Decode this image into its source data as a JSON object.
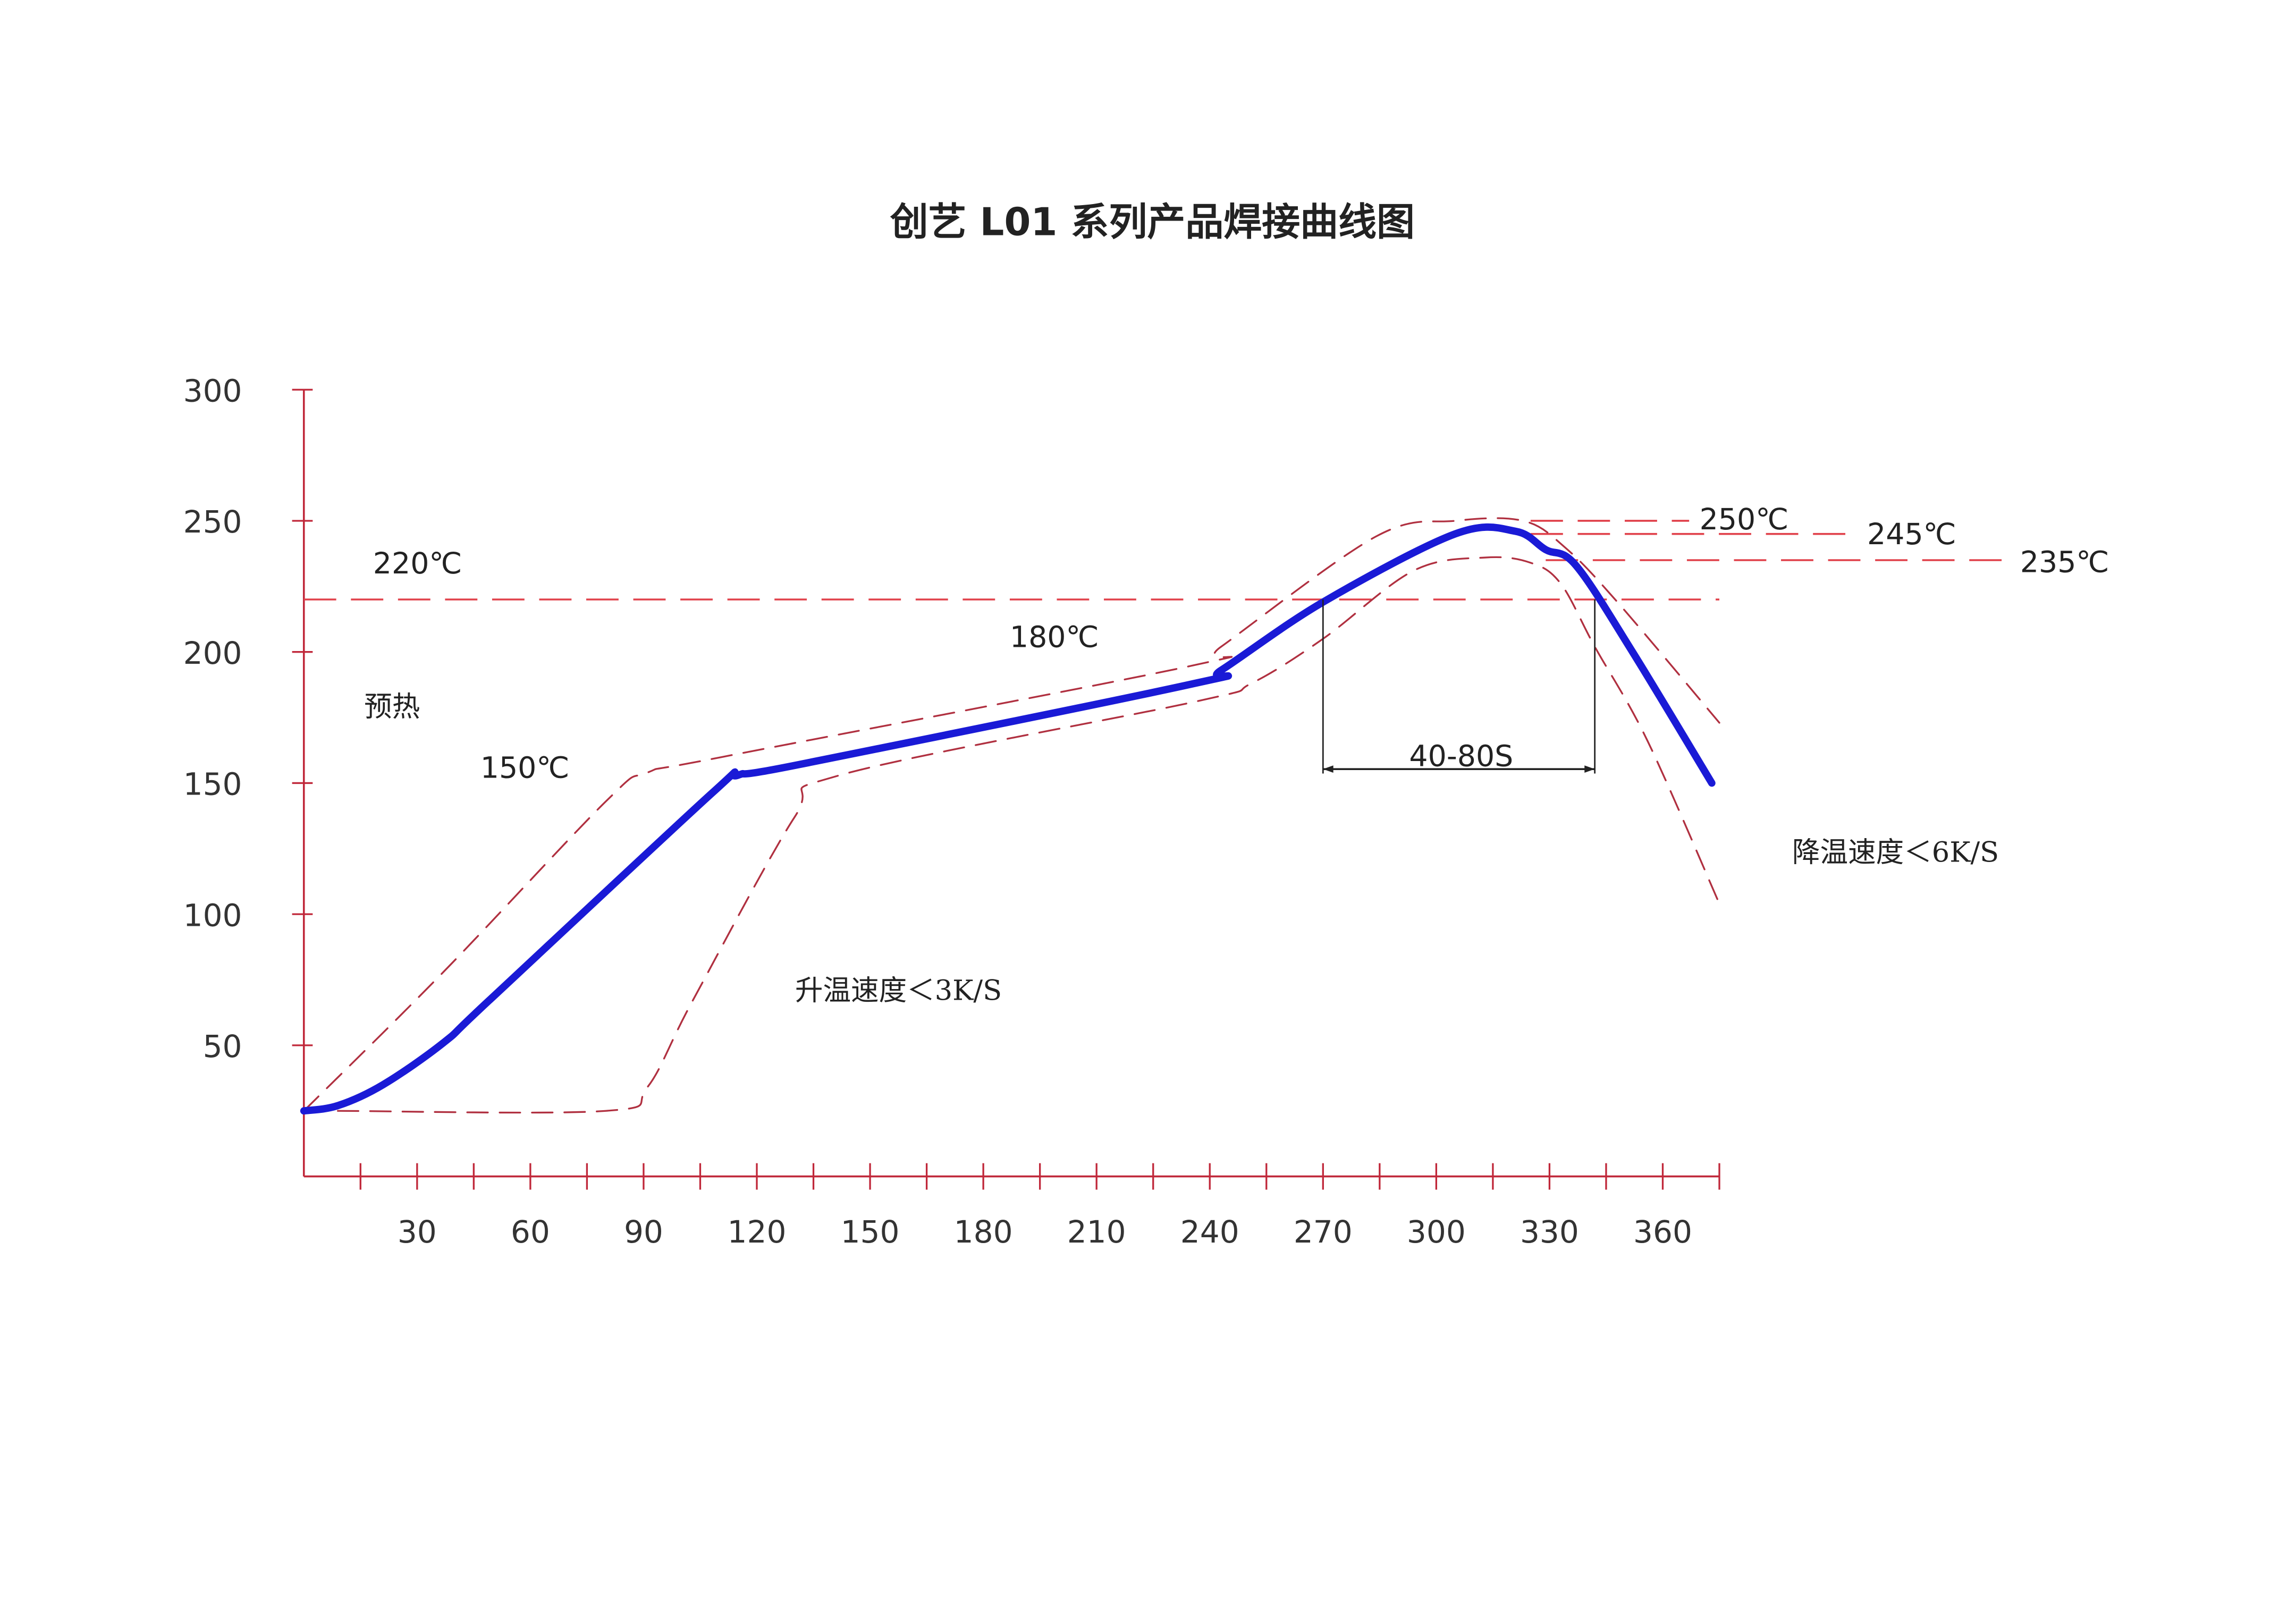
{
  "chart_data": {
    "type": "line",
    "title": "创艺 L01 系列产品焊接曲线图",
    "xlabel": "",
    "ylabel": "",
    "xlim": [
      0,
      375
    ],
    "ylim": [
      0,
      300
    ],
    "x_ticks": [
      30,
      60,
      90,
      120,
      150,
      180,
      210,
      240,
      270,
      300,
      330,
      360
    ],
    "x_minor_tick_step": 15,
    "y_ticks": [
      50,
      100,
      150,
      200,
      250,
      300
    ],
    "grid": false,
    "series": [
      {
        "role": "profile",
        "color": "#1a1ad6",
        "style": "solid",
        "points": [
          [
            0,
            25
          ],
          [
            9,
            27
          ],
          [
            21,
            35
          ],
          [
            37,
            51
          ],
          [
            49,
            67
          ],
          [
            108,
            146
          ],
          [
            115,
            153
          ],
          [
            131,
            157
          ],
          [
            236,
            188
          ],
          [
            243,
            193
          ],
          [
            270,
            219
          ],
          [
            305,
            245
          ],
          [
            321,
            246
          ],
          [
            329,
            239
          ],
          [
            337,
            233
          ],
          [
            352,
            200
          ],
          [
            373,
            150
          ]
        ]
      },
      {
        "role": "upper-limit",
        "color": "#b03040",
        "style": "dashed",
        "points": [
          [
            0,
            25
          ],
          [
            37,
            78
          ],
          [
            80,
            143
          ],
          [
            91,
            154
          ],
          [
            111,
            160
          ],
          [
            236,
            195
          ],
          [
            243,
            202
          ],
          [
            284,
            244
          ],
          [
            305,
            250
          ],
          [
            323,
            250
          ],
          [
            334,
            240
          ],
          [
            348,
            219
          ],
          [
            375,
            173
          ]
        ]
      },
      {
        "role": "lower-limit",
        "color": "#b03040",
        "style": "dashed",
        "points": [
          [
            9,
            25
          ],
          [
            80,
            25
          ],
          [
            91,
            34
          ],
          [
            103,
            67
          ],
          [
            130,
            137
          ],
          [
            142,
            153
          ],
          [
            236,
            181
          ],
          [
            251,
            188
          ],
          [
            270,
            205
          ],
          [
            294,
            231
          ],
          [
            313,
            236
          ],
          [
            325,
            234
          ],
          [
            333,
            226
          ],
          [
            342,
            202
          ],
          [
            356,
            166
          ],
          [
            375,
            104
          ]
        ]
      }
    ],
    "reference_lines": [
      {
        "label": "220℃",
        "y": 220,
        "x_range": [
          0,
          375
        ]
      },
      {
        "label": "250℃",
        "y": 250,
        "x_range": [
          325,
          367
        ]
      },
      {
        "label": "245℃",
        "y": 245,
        "x_range": [
          325,
          412
        ]
      },
      {
        "label": "235℃",
        "y": 235,
        "x_range": [
          329,
          453
        ]
      }
    ],
    "interval": {
      "label": "40-80S",
      "x_range": [
        270,
        342
      ],
      "y": 220
    },
    "annotations": {
      "preheat": "预热",
      "t150": "150℃",
      "t180": "180℃",
      "ramp_up": "升温速度＜3K/S",
      "ramp_down": "降温速度＜6K/S"
    },
    "colors": {
      "axis": "#c0283a",
      "profile": "#1a1ad6",
      "limits": "#b03040",
      "ref": "#e0404a",
      "dimension": "#222222"
    }
  }
}
